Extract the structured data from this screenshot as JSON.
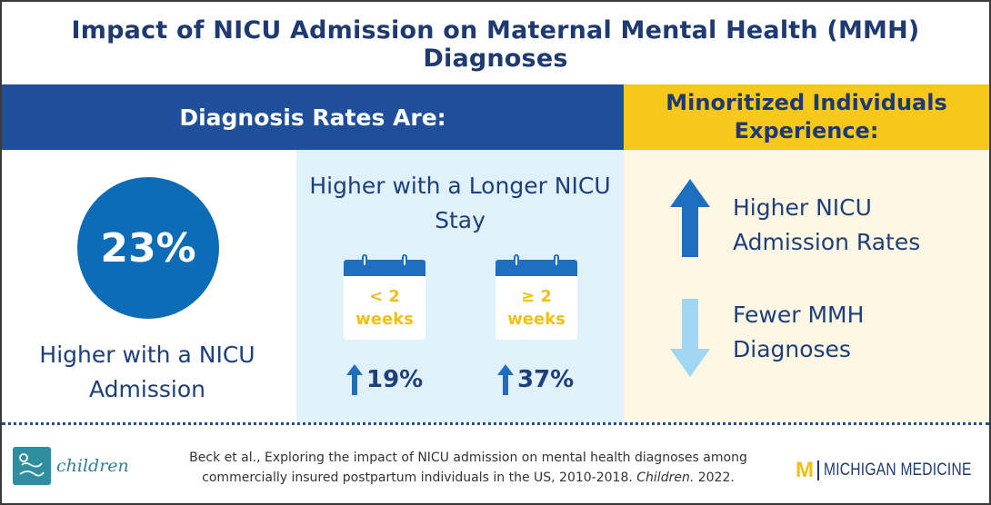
{
  "title": "Impact of NICU Admission on Maternal Mental Health (MMH) Diagnoses",
  "left_header": "Diagnosis Rates Are:",
  "right_header": "Minoritized Individuals Experience:",
  "panel_admission": {
    "percent": "23%",
    "caption": "Higher with a NICU Admission"
  },
  "panel_stay": {
    "heading": "Higher with a Longer NICU Stay",
    "calendars": [
      {
        "line1": "< 2",
        "line2": "weeks",
        "stat": "19%"
      },
      {
        "line1": "≥ 2",
        "line2": "weeks",
        "stat": "37%"
      }
    ]
  },
  "panel_minoritized": {
    "items": [
      {
        "direction": "up",
        "icon": "arrow-up-icon",
        "text": "Higher NICU Admission Rates"
      },
      {
        "direction": "down",
        "icon": "arrow-down-icon",
        "text": "Fewer MMH Diagnoses"
      }
    ]
  },
  "footer": {
    "journal_logo": "children",
    "citation_main": "Beck et al., Exploring the impact of NICU admission on mental health diagnoses among commercially insured postpartum individuals in the US, 2010-2018.",
    "citation_journal": "Children.",
    "citation_year": "2022.",
    "institution_mark": "M",
    "institution_name": "MICHIGAN MEDICINE"
  },
  "colors": {
    "navy": "#1f4e9a",
    "gold": "#f6c81a",
    "blue_circle": "#0d6cb5",
    "light_blue_panel": "#e0f1fa",
    "cream_panel": "#fdf7e3",
    "arrow_up": "#1f6fbf",
    "arrow_down": "#9fd6f3"
  }
}
